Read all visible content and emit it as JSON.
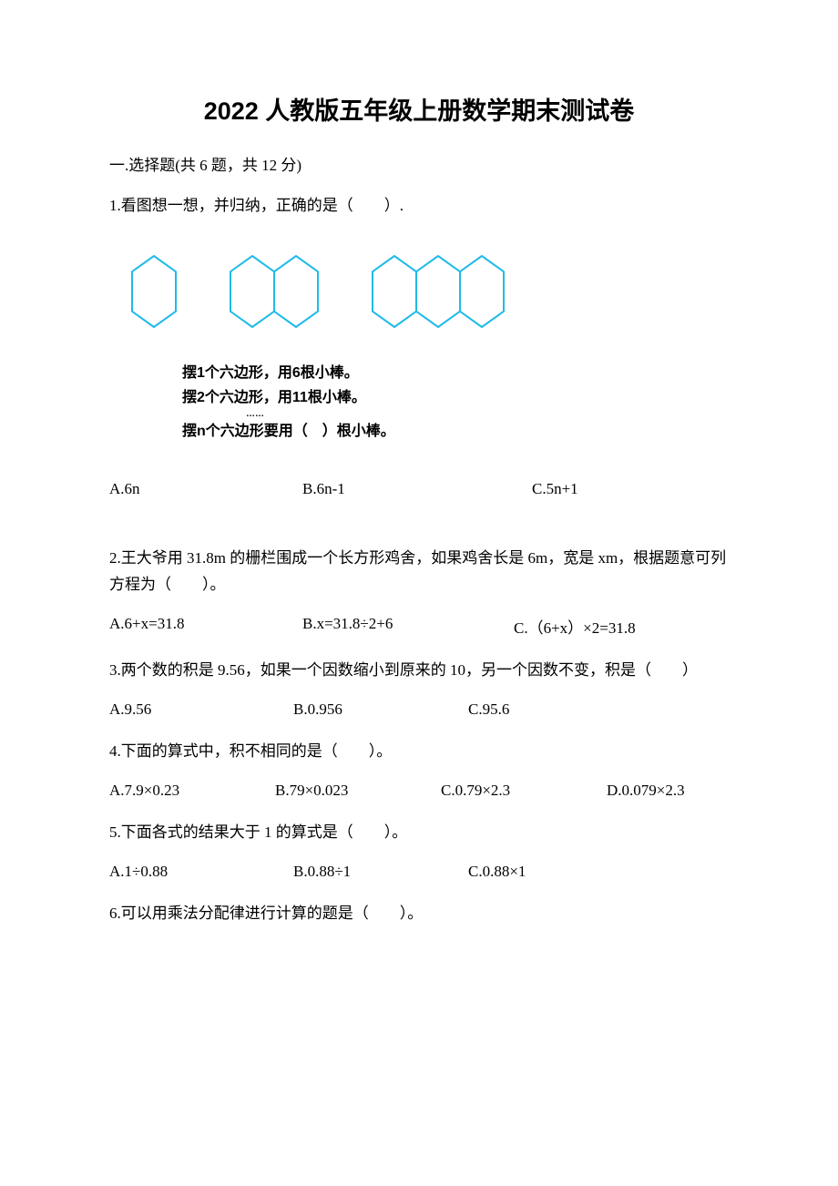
{
  "title": "2022 人教版五年级上册数学期末测试卷",
  "section1": {
    "header": "一.选择题(共 6 题，共 12 分)"
  },
  "q1": {
    "text": "1.看图想一想，并归纳，正确的是（　　）.",
    "hex": {
      "groups": [
        1,
        2,
        3
      ],
      "stroke": "#1fbbe8",
      "stroke_width": 2,
      "hex_w": 48,
      "hex_h": 78,
      "gap_between_groups": 60
    },
    "caption": {
      "l1": "摆1个六边形，用6根小棒。",
      "l2": "摆2个六边形，用11根小棒。",
      "l3": "摆n个六边形要用（　）根小棒。"
    },
    "opts": {
      "a": "A.6n",
      "b": "B.6n-1",
      "c": "C.5n+1"
    }
  },
  "q2": {
    "text": "2.王大爷用 31.8m 的栅栏围成一个长方形鸡舍，如果鸡舍长是 6m，宽是 xm，根据题意可列方程为（　　）。",
    "opts": {
      "a": "A.6+x=31.8",
      "b": "B.x=31.8÷2+6",
      "c": "C.（6+x）×2=31.8"
    }
  },
  "q3": {
    "text": "3.两个数的积是 9.56，如果一个因数缩小到原来的 10，另一个因数不变，积是（　　）",
    "opts": {
      "a": "A.9.56",
      "b": "B.0.956",
      "c": "C.95.6"
    }
  },
  "q4": {
    "text": "4.下面的算式中，积不相同的是（　　）。",
    "opts": {
      "a": "A.7.9×0.23",
      "b": "B.79×0.023",
      "c": "C.0.79×2.3",
      "d": "D.0.079×2.3"
    }
  },
  "q5": {
    "text": "5.下面各式的结果大于 1 的算式是（　　）。",
    "opts": {
      "a": "A.1÷0.88",
      "b": "B.0.88÷1",
      "c": "C.0.88×1"
    }
  },
  "q6": {
    "text": "6.可以用乘法分配律进行计算的题是（　　）。"
  }
}
